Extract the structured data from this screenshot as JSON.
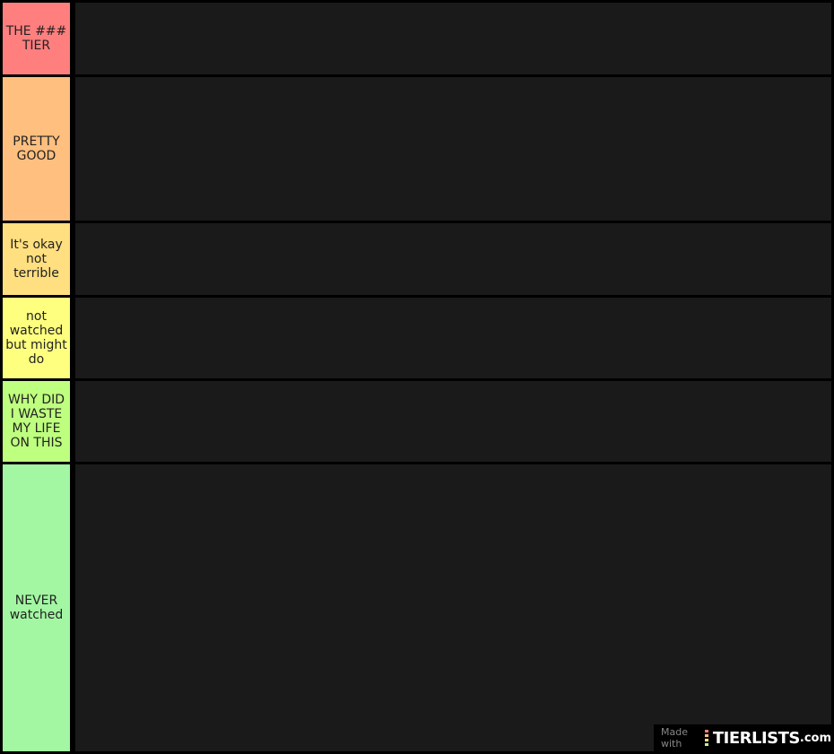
{
  "tiers": [
    {
      "label": "THE ### TIER",
      "color": "#ff7f7f"
    },
    {
      "label": "PRETTY GOOD",
      "color": "#ffbf7f"
    },
    {
      "label": "It's okay not terrible",
      "color": "#ffdf7f"
    },
    {
      "label": "not watched but might do",
      "color": "#ffff7f"
    },
    {
      "label": "WHY DID I WASTE MY LIFE ON THIS",
      "color": "#bfff7f"
    },
    {
      "label": "NEVER watched",
      "color": "#a3f7a3"
    }
  ],
  "watermark": {
    "made_with": "Made with",
    "brand": "TIERLISTS",
    "domain": ".com",
    "bar_colors": [
      "#ff7f7f",
      "#ffbf7f",
      "#ffdf7f",
      "#bfff7f"
    ]
  },
  "content_bg": "#1a1a1a"
}
